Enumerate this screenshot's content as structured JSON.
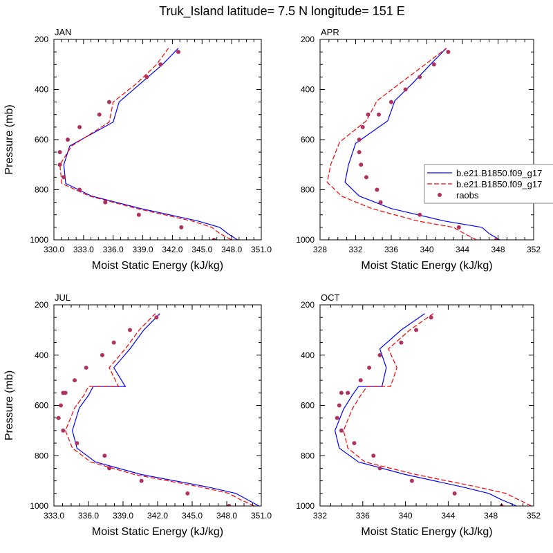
{
  "figure_title": "Truk_Island  latitude= 7.5 N longitude= 151 E",
  "legend": {
    "entries": [
      {
        "label": "b.e21.B1850.f09_g17",
        "style": "solid",
        "color": "#0000ff"
      },
      {
        "label": "b.e21.B1850.f09_g17",
        "style": "dashed",
        "color": "#ff0000"
      },
      {
        "label": "raobs",
        "style": "marker",
        "color": "#b03060"
      }
    ]
  },
  "chart_data": [
    {
      "type": "line",
      "title": "JAN",
      "xlabel": "Moist Static Energy (kJ/kg)",
      "ylabel": "Pressure (mb)",
      "xlim": [
        330,
        351
      ],
      "ylim": [
        1000,
        200
      ],
      "xticks": [
        330,
        333,
        336,
        339,
        342,
        345,
        348,
        351
      ],
      "xtick_labels": [
        "330.0",
        "333.0",
        "336.0",
        "339.0",
        "342.0",
        "345.0",
        "348.0",
        "351.0"
      ],
      "yticks": [
        200,
        400,
        600,
        800,
        1000
      ],
      "ytick_labels": [
        "200",
        "400",
        "600",
        "800",
        "1000"
      ],
      "series": [
        {
          "name": "b.e21.B1850.f09_g17",
          "style": "solid",
          "color": "#0000ff",
          "x": [
            348.6,
            347.6,
            346.8,
            344.6,
            338.8,
            333.8,
            331.2,
            331.0,
            331.6,
            336.0,
            336.6,
            338.8,
            341.0,
            342.6
          ],
          "y": [
            1000,
            975,
            950,
            925,
            875,
            825,
            775,
            700,
            625,
            530,
            450,
            375,
            300,
            235
          ]
        },
        {
          "name": "b.e21.B1850.f09_g17",
          "style": "dashed",
          "color": "#ff0000",
          "x": [
            348.0,
            346.8,
            346.0,
            344.0,
            338.4,
            333.6,
            330.8,
            330.6,
            331.8,
            335.6,
            336.0,
            338.4,
            340.4,
            341.6
          ],
          "y": [
            1000,
            975,
            950,
            925,
            875,
            825,
            775,
            700,
            625,
            530,
            450,
            375,
            300,
            235
          ]
        },
        {
          "name": "raobs",
          "style": "marker",
          "color": "#b03060",
          "x": [
            346.2,
            342.9,
            338.6,
            335.2,
            332.6,
            331.0,
            330.6,
            330.6,
            331.4,
            332.6,
            334.6,
            335.6,
            339.4,
            340.8,
            342.6
          ],
          "y": [
            1000,
            950,
            900,
            850,
            800,
            750,
            700,
            650,
            600,
            550,
            500,
            450,
            350,
            300,
            250
          ]
        }
      ]
    },
    {
      "type": "line",
      "title": "APR",
      "xlabel": "Moist Static Energy (kJ/kg)",
      "ylabel": "",
      "xlim": [
        328,
        352
      ],
      "ylim": [
        1000,
        200
      ],
      "xticks": [
        328,
        332,
        336,
        340,
        344,
        348,
        352
      ],
      "xtick_labels": [
        "328",
        "332",
        "336",
        "340",
        "344",
        "348",
        "352"
      ],
      "yticks": [
        200,
        400,
        600,
        800,
        1000
      ],
      "ytick_labels": [
        "200",
        "400",
        "600",
        "800",
        "1000"
      ],
      "series": [
        {
          "name": "b.e21.B1850.f09_g17",
          "style": "solid",
          "color": "#0000ff",
          "x": [
            348.2,
            347.0,
            346.2,
            342.0,
            336.0,
            332.4,
            330.8,
            331.2,
            332.0,
            335.6,
            336.4,
            338.4,
            340.4,
            342.2
          ],
          "y": [
            1000,
            975,
            950,
            925,
            875,
            825,
            770,
            700,
            615,
            525,
            445,
            375,
            300,
            235
          ]
        },
        {
          "name": "b.e21.B1850.f09_g17",
          "style": "dashed",
          "color": "#ff0000",
          "x": [
            345.6,
            344.2,
            343.0,
            339.0,
            333.8,
            330.4,
            328.8,
            329.2,
            330.2,
            333.2,
            334.4,
            337.0,
            339.8,
            342.2
          ],
          "y": [
            1000,
            975,
            950,
            925,
            875,
            825,
            770,
            700,
            610,
            525,
            445,
            375,
            300,
            235
          ]
        },
        {
          "name": "raobs",
          "style": "marker",
          "color": "#b03060",
          "x": [
            347.8,
            343.6,
            339.2,
            334.8,
            334.4,
            333.2,
            332.6,
            332.4,
            332.4,
            332.8,
            333.4,
            334.6,
            336.0,
            337.6,
            339.2,
            340.8,
            342.4
          ],
          "y": [
            1000,
            950,
            900,
            850,
            800,
            750,
            700,
            650,
            600,
            550,
            500,
            500,
            450,
            400,
            350,
            300,
            250
          ]
        }
      ]
    },
    {
      "type": "line",
      "title": "JUL",
      "xlabel": "Moist Static Energy (kJ/kg)",
      "ylabel": "Pressure (mb)",
      "xlim": [
        333,
        351
      ],
      "ylim": [
        1000,
        200
      ],
      "xticks": [
        333,
        336,
        339,
        342,
        345,
        348,
        351
      ],
      "xtick_labels": [
        "333.0",
        "336.0",
        "339.0",
        "342.0",
        "345.0",
        "348.0",
        "351.0"
      ],
      "yticks": [
        200,
        400,
        600,
        800,
        1000
      ],
      "ytick_labels": [
        "200",
        "400",
        "600",
        "800",
        "1000"
      ],
      "series": [
        {
          "name": "b.e21.B1850.f09_g17",
          "style": "solid",
          "color": "#0000ff",
          "x": [
            350.8,
            349.8,
            348.8,
            346.4,
            340.6,
            336.6,
            335.0,
            334.6,
            335.2,
            336.0,
            336.4,
            339.2,
            338.2,
            339.6,
            340.8,
            342.2
          ],
          "y": [
            1000,
            975,
            950,
            925,
            875,
            825,
            770,
            700,
            610,
            560,
            525,
            525,
            450,
            375,
            300,
            235
          ]
        },
        {
          "name": "b.e21.B1850.f09_g17",
          "style": "dashed",
          "color": "#ff0000",
          "x": [
            350.4,
            349.2,
            348.2,
            345.8,
            340.0,
            336.2,
            334.6,
            334.0,
            334.8,
            335.6,
            336.0,
            338.6,
            337.8,
            339.2,
            340.4,
            341.8
          ],
          "y": [
            1000,
            975,
            950,
            925,
            875,
            825,
            770,
            700,
            610,
            560,
            525,
            525,
            450,
            375,
            300,
            235
          ]
        },
        {
          "name": "raobs",
          "style": "marker",
          "color": "#b03060",
          "x": [
            348.2,
            344.6,
            340.6,
            337.8,
            337.4,
            335.0,
            333.8,
            333.4,
            333.6,
            333.8,
            334.0,
            334.8,
            335.8,
            337.2,
            338.2,
            339.6,
            341.9
          ],
          "y": [
            1000,
            950,
            900,
            850,
            800,
            750,
            700,
            650,
            600,
            550,
            550,
            500,
            450,
            400,
            350,
            300,
            250
          ]
        }
      ]
    },
    {
      "type": "line",
      "title": "OCT",
      "xlabel": "Moist Static Energy (kJ/kg)",
      "ylabel": "",
      "xlim": [
        332,
        352
      ],
      "ylim": [
        1000,
        200
      ],
      "xticks": [
        332,
        336,
        340,
        344,
        348,
        352
      ],
      "xtick_labels": [
        "332",
        "336",
        "340",
        "344",
        "348",
        "352"
      ],
      "yticks": [
        200,
        400,
        600,
        800,
        1000
      ],
      "ytick_labels": [
        "200",
        "400",
        "600",
        "800",
        "1000"
      ],
      "series": [
        {
          "name": "b.e21.B1850.f09_g17",
          "style": "solid",
          "color": "#0000ff",
          "x": [
            350.4,
            349.0,
            347.8,
            345.4,
            340.0,
            335.6,
            333.8,
            333.4,
            334.2,
            335.0,
            335.6,
            337.8,
            338.2,
            337.6,
            339.6,
            341.8
          ],
          "y": [
            1000,
            975,
            950,
            925,
            875,
            825,
            770,
            700,
            615,
            560,
            525,
            525,
            450,
            375,
            300,
            235
          ]
        },
        {
          "name": "b.e21.B1850.f09_g17",
          "style": "dashed",
          "color": "#ff0000",
          "x": [
            351.8,
            350.6,
            349.4,
            346.8,
            341.0,
            336.2,
            334.6,
            334.2,
            335.0,
            335.8,
            336.4,
            338.6,
            339.2,
            338.4,
            340.4,
            342.6
          ],
          "y": [
            1000,
            975,
            950,
            925,
            875,
            825,
            770,
            700,
            615,
            560,
            525,
            525,
            450,
            375,
            300,
            235
          ]
        },
        {
          "name": "raobs",
          "style": "marker",
          "color": "#b03060",
          "x": [
            349.0,
            344.6,
            340.6,
            337.6,
            337.0,
            335.2,
            334.0,
            333.6,
            333.8,
            334.0,
            334.6,
            335.8,
            336.6,
            337.6,
            339.6,
            341.0,
            342.4
          ],
          "y": [
            1000,
            950,
            900,
            850,
            800,
            750,
            700,
            650,
            600,
            550,
            550,
            500,
            450,
            400,
            350,
            300,
            250
          ]
        }
      ]
    }
  ]
}
